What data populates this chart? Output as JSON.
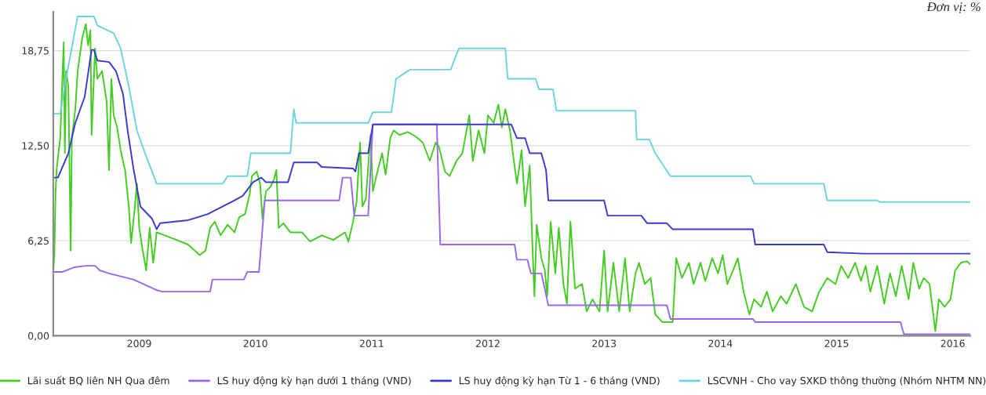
{
  "chart_data": {
    "type": "line",
    "annotations": [
      "Đơn vị: %"
    ],
    "xlim": [
      2008.26,
      2016.15
    ],
    "xticks": [
      2009,
      2010,
      2011,
      2012,
      2013,
      2014,
      2015,
      2016
    ],
    "ylim": [
      0,
      21.3
    ],
    "yticks": [
      {
        "value": 0,
        "label": "0,00"
      },
      {
        "value": 6.25,
        "label": "6,25"
      },
      {
        "value": 12.5,
        "label": "12,50"
      },
      {
        "value": 18.75,
        "label": "18,75"
      }
    ],
    "grid": "y",
    "legend": "bottom",
    "marker": "none",
    "line_style": "solid",
    "series": [
      {
        "name": "Lãi suất BQ liên NH Qua đêm",
        "color": "#44cc22",
        "x": [
          2008.26,
          2008.27,
          2008.28,
          2008.29,
          2008.32,
          2008.35,
          2008.36,
          2008.37,
          2008.39,
          2008.41,
          2008.42,
          2008.45,
          2008.47,
          2008.51,
          2008.54,
          2008.56,
          2008.58,
          2008.59,
          2008.62,
          2008.64,
          2008.68,
          2008.72,
          2008.74,
          2008.76,
          2008.78,
          2008.81,
          2008.84,
          2008.88,
          2008.91,
          2008.93,
          2008.96,
          2008.98,
          2009.0,
          2009.03,
          2009.06,
          2009.09,
          2009.12,
          2009.15,
          2009.22,
          2009.32,
          2009.42,
          2009.52,
          2009.57,
          2009.61,
          2009.65,
          2009.7,
          2009.76,
          2009.82,
          2009.86,
          2009.91,
          2009.95,
          2009.97,
          2010.01,
          2010.04,
          2010.06,
          2010.09,
          2010.13,
          2010.16,
          2010.18,
          2010.2,
          2010.24,
          2010.3,
          2010.4,
          2010.47,
          2010.57,
          2010.67,
          2010.77,
          2010.8,
          2010.84,
          2010.87,
          2010.9,
          2010.92,
          2010.95,
          2010.99,
          2011.01,
          2011.04,
          2011.09,
          2011.12,
          2011.16,
          2011.19,
          2011.24,
          2011.31,
          2011.38,
          2011.44,
          2011.5,
          2011.55,
          2011.58,
          2011.63,
          2011.67,
          2011.73,
          2011.78,
          2011.84,
          2011.87,
          2011.92,
          2011.97,
          2012.0,
          2012.05,
          2012.09,
          2012.12,
          2012.15,
          2012.19,
          2012.22,
          2012.25,
          2012.29,
          2012.32,
          2012.36,
          2012.38,
          2012.4,
          2012.42,
          2012.46,
          2012.49,
          2012.51,
          2012.54,
          2012.58,
          2012.61,
          2012.65,
          2012.68,
          2012.71,
          2012.75,
          2012.81,
          2012.85,
          2012.9,
          2012.96,
          2013.0,
          2013.03,
          2013.08,
          2013.13,
          2013.18,
          2013.22,
          2013.27,
          2013.3,
          2013.35,
          2013.4,
          2013.44,
          2013.5,
          2013.59,
          2013.62,
          2013.67,
          2013.73,
          2013.77,
          2013.83,
          2013.87,
          2013.93,
          2013.98,
          2014.02,
          2014.06,
          2014.11,
          2014.15,
          2014.2,
          2014.25,
          2014.29,
          2014.35,
          2014.4,
          2014.45,
          2014.52,
          2014.57,
          2014.65,
          2014.72,
          2014.79,
          2014.85,
          2014.92,
          2014.99,
          2015.04,
          2015.1,
          2015.16,
          2015.21,
          2015.25,
          2015.29,
          2015.35,
          2015.41,
          2015.46,
          2015.51,
          2015.56,
          2015.62,
          2015.66,
          2015.71,
          2015.75,
          2015.8,
          2015.85,
          2015.88,
          2015.93,
          2015.98,
          2016.02,
          2016.07,
          2016.12,
          2016.15
        ],
        "values": [
          4.2,
          5.4,
          9.5,
          11.0,
          13.0,
          19.3,
          12.0,
          17.4,
          16.4,
          5.6,
          13.0,
          14.9,
          17.4,
          19.6,
          20.5,
          19.1,
          20.1,
          13.2,
          18.9,
          16.9,
          17.4,
          15.4,
          10.9,
          16.9,
          14.5,
          13.7,
          12.2,
          10.8,
          8.5,
          6.1,
          8.3,
          10.0,
          7.1,
          5.6,
          4.3,
          7.1,
          4.8,
          6.8,
          6.6,
          6.3,
          6.0,
          5.3,
          5.6,
          7.1,
          7.5,
          6.6,
          7.3,
          6.8,
          7.8,
          8.0,
          9.3,
          10.5,
          10.8,
          10.0,
          7.7,
          9.5,
          9.8,
          10.3,
          10.9,
          7.1,
          7.4,
          6.8,
          6.8,
          6.2,
          6.6,
          6.3,
          6.8,
          6.2,
          7.5,
          8.8,
          12.7,
          8.5,
          9.0,
          13.2,
          9.5,
          10.5,
          12.0,
          10.6,
          13.0,
          13.5,
          13.2,
          13.4,
          13.1,
          12.7,
          11.5,
          12.7,
          12.4,
          10.8,
          10.5,
          11.5,
          12.0,
          14.5,
          11.5,
          13.5,
          12.0,
          14.5,
          14.0,
          15.2,
          13.7,
          14.9,
          13.5,
          11.7,
          10.0,
          12.2,
          8.5,
          11.2,
          6.6,
          2.6,
          7.3,
          5.1,
          4.3,
          2.6,
          7.5,
          4.1,
          7.1,
          3.4,
          2.1,
          7.5,
          3.1,
          3.4,
          1.6,
          2.4,
          1.6,
          5.6,
          1.6,
          4.8,
          1.6,
          5.1,
          1.6,
          4.1,
          4.8,
          3.4,
          3.8,
          1.4,
          0.9,
          0.9,
          5.1,
          3.8,
          4.8,
          3.4,
          4.8,
          3.6,
          5.1,
          4.1,
          5.3,
          3.4,
          4.3,
          5.1,
          2.9,
          1.4,
          2.4,
          1.9,
          2.9,
          1.6,
          2.6,
          2.1,
          3.4,
          1.9,
          1.6,
          2.9,
          3.8,
          3.4,
          4.6,
          3.8,
          4.8,
          3.6,
          4.6,
          2.9,
          4.6,
          2.1,
          4.1,
          2.6,
          4.6,
          2.4,
          4.8,
          3.1,
          3.8,
          3.4,
          0.3,
          2.4,
          1.9,
          2.4,
          4.3,
          4.8,
          4.9,
          4.7
        ]
      },
      {
        "name": "LS huy động kỳ hạn dưới 1 tháng (VND)",
        "color": "#9966ee",
        "x": [
          2008.26,
          2008.34,
          2008.44,
          2008.54,
          2008.62,
          2008.66,
          2008.74,
          2008.95,
          2009.15,
          2009.2,
          2009.61,
          2009.63,
          2009.9,
          2009.93,
          2010.03,
          2010.08,
          2010.72,
          2010.75,
          2010.82,
          2010.85,
          2010.97,
          2011.01,
          2011.56,
          2011.59,
          2012.23,
          2012.25,
          2012.34,
          2012.37,
          2012.46,
          2012.52,
          2013.54,
          2013.57,
          2014.28,
          2014.3,
          2015.55,
          2015.58,
          2016.15
        ],
        "values": [
          4.2,
          4.2,
          4.5,
          4.6,
          4.6,
          4.3,
          4.1,
          3.7,
          3.0,
          2.9,
          2.9,
          3.7,
          3.7,
          4.2,
          4.2,
          8.9,
          8.9,
          10.4,
          10.4,
          7.9,
          7.9,
          13.9,
          13.9,
          6.0,
          6.0,
          5.0,
          5.0,
          4.1,
          4.1,
          2.0,
          2.0,
          1.1,
          1.1,
          0.9,
          0.9,
          0.1,
          0.1
        ]
      },
      {
        "name": "LS huy động kỳ hạn Từ 1 - 6 tháng (VND)",
        "color": "#3a3ad0",
        "x": [
          2008.26,
          2008.3,
          2008.39,
          2008.45,
          2008.53,
          2008.59,
          2008.61,
          2008.64,
          2008.74,
          2008.8,
          2008.86,
          2008.9,
          2008.95,
          2009.01,
          2009.11,
          2009.15,
          2009.18,
          2009.42,
          2009.59,
          2009.82,
          2009.89,
          2009.98,
          2010.05,
          2010.09,
          2010.28,
          2010.33,
          2010.53,
          2010.57,
          2010.84,
          2010.86,
          2010.89,
          2010.97,
          2011.01,
          2012.2,
          2012.25,
          2012.32,
          2012.36,
          2012.46,
          2012.5,
          2012.52,
          2013.0,
          2013.03,
          2013.32,
          2013.37,
          2013.54,
          2013.59,
          2014.28,
          2014.3,
          2014.89,
          2014.92,
          2015.23,
          2016.15
        ],
        "values": [
          10.4,
          10.4,
          12.0,
          14.0,
          15.7,
          18.8,
          18.8,
          18.1,
          18.0,
          17.4,
          15.9,
          13.5,
          11.0,
          8.5,
          7.7,
          7.0,
          7.4,
          7.6,
          8.0,
          8.9,
          9.2,
          10.1,
          10.4,
          10.1,
          10.1,
          11.4,
          11.4,
          11.1,
          11.0,
          10.8,
          12.0,
          12.0,
          13.9,
          13.9,
          13.0,
          13.0,
          12.0,
          12.0,
          10.9,
          8.9,
          8.9,
          7.9,
          7.9,
          7.4,
          7.4,
          7.0,
          7.0,
          6.0,
          6.0,
          5.5,
          5.4,
          5.4
        ]
      },
      {
        "name": "LSCVNH - Cho vay SXKD thông thường (Nhóm NHTM NN)",
        "color": "#6cd4e0",
        "x": [
          2008.26,
          2008.32,
          2008.37,
          2008.47,
          2008.61,
          2008.64,
          2008.78,
          2008.84,
          2008.91,
          2008.98,
          2009.05,
          2009.15,
          2009.72,
          2009.76,
          2009.93,
          2009.96,
          2010.3,
          2010.33,
          2010.35,
          2010.97,
          2011.01,
          2011.17,
          2011.21,
          2011.33,
          2011.68,
          2011.75,
          2012.15,
          2012.17,
          2012.41,
          2012.44,
          2012.56,
          2012.59,
          2013.27,
          2013.28,
          2013.39,
          2013.44,
          2013.57,
          2014.26,
          2014.29,
          2014.89,
          2014.92,
          2015.35,
          2015.37,
          2016.15
        ],
        "values": [
          14.6,
          14.6,
          16.9,
          21.0,
          21.0,
          20.4,
          19.9,
          18.9,
          16.4,
          13.5,
          12.0,
          10.0,
          10.0,
          10.5,
          10.5,
          12.0,
          12.0,
          14.9,
          14.0,
          14.0,
          14.7,
          14.7,
          16.9,
          17.5,
          17.5,
          18.9,
          18.9,
          16.9,
          16.9,
          16.2,
          16.2,
          14.8,
          14.8,
          12.9,
          12.9,
          12.0,
          10.5,
          10.5,
          10.0,
          10.0,
          8.9,
          8.9,
          8.8,
          8.8
        ]
      }
    ]
  }
}
